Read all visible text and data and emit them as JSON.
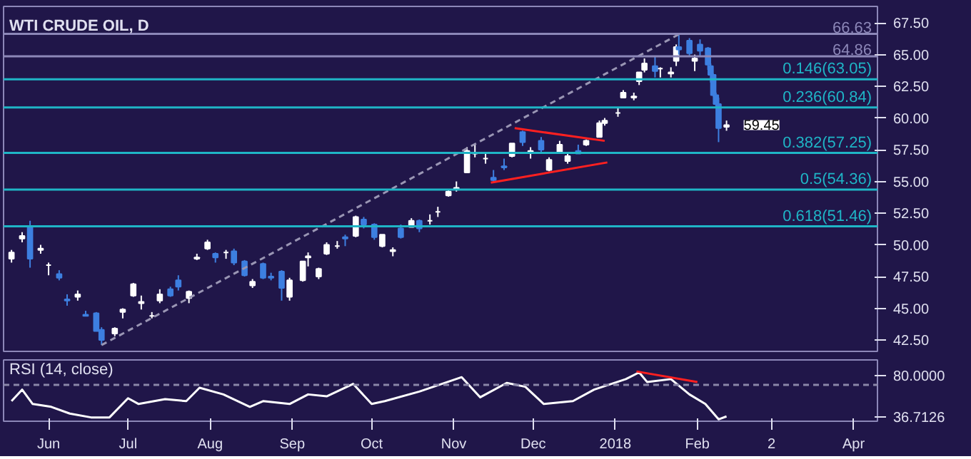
{
  "chart_data": [
    {
      "type": "candlestick",
      "title": "WTI CRUDE OIL, D",
      "x": [
        "2017-05-18",
        "2017-05-22",
        "2017-05-25",
        "2017-05-29",
        "2017-06-01",
        "2017-06-05",
        "2017-06-08",
        "2017-06-12",
        "2017-06-15",
        "2017-06-19",
        "2017-06-21",
        "2017-06-26",
        "2017-06-29",
        "2017-07-03",
        "2017-07-06",
        "2017-07-10",
        "2017-07-13",
        "2017-07-17",
        "2017-07-20",
        "2017-07-24",
        "2017-07-27",
        "2017-07-31",
        "2017-08-03",
        "2017-08-07",
        "2017-08-10",
        "2017-08-14",
        "2017-08-17",
        "2017-08-21",
        "2017-08-24",
        "2017-08-28",
        "2017-08-31",
        "2017-09-05",
        "2017-09-07",
        "2017-09-11",
        "2017-09-14",
        "2017-09-18",
        "2017-09-21",
        "2017-09-25",
        "2017-09-28",
        "2017-10-02",
        "2017-10-05",
        "2017-10-09",
        "2017-10-12",
        "2017-10-16",
        "2017-10-19",
        "2017-10-23",
        "2017-10-26",
        "2017-10-30",
        "2017-11-02",
        "2017-11-06",
        "2017-11-09",
        "2017-11-13",
        "2017-11-16",
        "2017-11-20",
        "2017-11-23",
        "2017-11-27",
        "2017-11-30",
        "2017-12-04",
        "2017-12-07",
        "2017-12-11",
        "2017-12-14",
        "2017-12-18",
        "2017-12-21",
        "2017-12-26",
        "2017-12-28",
        "2018-01-02",
        "2018-01-04",
        "2018-01-08",
        "2018-01-10",
        "2018-01-12",
        "2018-01-16",
        "2018-01-18",
        "2018-01-22",
        "2018-01-24",
        "2018-01-25",
        "2018-01-29",
        "2018-01-31",
        "2018-02-02",
        "2018-02-05",
        "2018-02-06",
        "2018-02-07",
        "2018-02-08",
        "2018-02-09",
        "2018-02-12"
      ],
      "ohlc": [
        [
          48.9,
          49.6,
          48.6,
          49.4
        ],
        [
          50.5,
          51.0,
          50.2,
          50.7
        ],
        [
          51.4,
          51.9,
          48.2,
          48.9
        ],
        [
          49.6,
          50.0,
          49.3,
          49.7
        ],
        [
          48.4,
          48.6,
          47.6,
          48.4
        ],
        [
          47.7,
          48.0,
          47.2,
          47.4
        ],
        [
          45.7,
          46.1,
          45.2,
          45.6
        ],
        [
          45.9,
          46.4,
          45.6,
          46.1
        ],
        [
          44.5,
          44.8,
          44.4,
          44.4
        ],
        [
          44.6,
          44.7,
          43.2,
          43.2
        ],
        [
          43.3,
          43.5,
          42.1,
          42.5
        ],
        [
          43.0,
          43.5,
          42.8,
          43.4
        ],
        [
          44.7,
          45.0,
          44.2,
          44.9
        ],
        [
          46.0,
          47.0,
          45.9,
          46.9
        ],
        [
          45.4,
          46.0,
          44.9,
          45.5
        ],
        [
          44.4,
          44.7,
          44.2,
          44.4
        ],
        [
          45.6,
          46.5,
          45.4,
          46.1
        ],
        [
          46.5,
          46.7,
          45.9,
          46.0
        ],
        [
          47.2,
          47.6,
          46.4,
          46.7
        ],
        [
          45.8,
          46.4,
          45.4,
          46.3
        ],
        [
          48.9,
          49.3,
          48.8,
          49.0
        ],
        [
          49.7,
          50.4,
          49.6,
          50.2
        ],
        [
          49.3,
          49.4,
          48.6,
          49.0
        ],
        [
          49.4,
          49.6,
          48.9,
          49.4
        ],
        [
          49.5,
          49.7,
          48.4,
          48.6
        ],
        [
          48.7,
          48.8,
          47.5,
          47.6
        ],
        [
          46.8,
          47.3,
          46.6,
          47.1
        ],
        [
          48.5,
          48.6,
          47.3,
          47.4
        ],
        [
          47.5,
          47.8,
          47.2,
          47.4
        ],
        [
          47.9,
          48.0,
          45.6,
          46.6
        ],
        [
          45.9,
          47.4,
          45.6,
          47.2
        ],
        [
          47.2,
          48.7,
          47.1,
          48.7
        ],
        [
          49.0,
          49.4,
          48.3,
          49.1
        ],
        [
          47.5,
          48.2,
          47.3,
          48.1
        ],
        [
          49.3,
          50.2,
          49.2,
          50.0
        ],
        [
          49.9,
          50.3,
          49.7,
          49.9
        ],
        [
          50.6,
          50.8,
          49.9,
          50.5
        ],
        [
          50.7,
          52.3,
          50.6,
          52.2
        ],
        [
          52.0,
          52.2,
          51.3,
          51.6
        ],
        [
          51.6,
          51.7,
          50.4,
          50.6
        ],
        [
          49.9,
          50.8,
          49.8,
          50.8
        ],
        [
          49.5,
          49.8,
          49.1,
          49.6
        ],
        [
          51.3,
          51.6,
          50.5,
          50.6
        ],
        [
          51.4,
          52.1,
          51.4,
          51.9
        ],
        [
          51.9,
          52.0,
          51.0,
          51.3
        ],
        [
          51.9,
          52.4,
          51.6,
          51.9
        ],
        [
          52.6,
          53.0,
          52.2,
          52.6
        ],
        [
          53.9,
          54.3,
          53.8,
          54.2
        ],
        [
          54.4,
          55.0,
          54.2,
          54.5
        ],
        [
          55.7,
          57.7,
          55.7,
          57.4
        ],
        [
          57.2,
          57.9,
          56.9,
          57.2
        ],
        [
          56.8,
          57.3,
          56.4,
          56.8
        ],
        [
          55.3,
          55.9,
          54.9,
          55.1
        ],
        [
          56.2,
          56.8,
          55.9,
          56.1
        ],
        [
          57.0,
          58.0,
          56.9,
          58.0
        ],
        [
          58.9,
          59.0,
          57.8,
          58.1
        ],
        [
          57.3,
          57.7,
          56.8,
          57.4
        ],
        [
          58.2,
          58.5,
          57.3,
          57.5
        ],
        [
          55.9,
          56.9,
          55.8,
          56.7
        ],
        [
          57.3,
          58.2,
          57.2,
          57.9
        ],
        [
          56.6,
          57.2,
          56.4,
          57.0
        ],
        [
          57.4,
          57.9,
          57.2,
          57.2
        ],
        [
          57.9,
          58.3,
          57.8,
          58.2
        ],
        [
          58.5,
          59.8,
          58.5,
          59.6
        ],
        [
          59.6,
          60.0,
          59.4,
          59.8
        ],
        [
          60.4,
          60.8,
          60.1,
          60.4
        ],
        [
          61.6,
          62.2,
          61.6,
          62.0
        ],
        [
          61.6,
          62.0,
          61.4,
          61.7
        ],
        [
          62.9,
          63.6,
          62.6,
          63.6
        ],
        [
          63.8,
          64.7,
          63.6,
          64.3
        ],
        [
          64.1,
          64.9,
          63.2,
          63.7
        ],
        [
          63.9,
          64.0,
          63.2,
          63.9
        ],
        [
          63.5,
          64.0,
          63.2,
          63.6
        ],
        [
          64.5,
          65.8,
          64.1,
          65.6
        ],
        [
          65.6,
          66.7,
          65.0,
          65.4
        ],
        [
          66.1,
          66.3,
          64.9,
          65.1
        ],
        [
          64.5,
          65.0,
          63.7,
          64.7
        ],
        [
          65.8,
          66.2,
          64.9,
          65.3
        ],
        [
          65.5,
          65.6,
          63.8,
          64.2
        ],
        [
          64.1,
          64.3,
          62.8,
          63.4
        ],
        [
          63.4,
          63.5,
          61.7,
          61.8
        ],
        [
          61.8,
          62.0,
          60.9,
          61.1
        ],
        [
          61.1,
          61.6,
          58.1,
          59.2
        ],
        [
          59.3,
          59.8,
          59.0,
          59.45
        ]
      ],
      "colors": [
        "#ffffff",
        "#ffffff",
        "#3d7fe0",
        "#ffffff",
        "#ffffff",
        "#3d7fe0",
        "#3d7fe0",
        "#ffffff",
        "#3d7fe0",
        "#3d7fe0",
        "#3d7fe0",
        "#ffffff",
        "#ffffff",
        "#ffffff",
        "#ffffff",
        "#ffffff",
        "#ffffff",
        "#3d7fe0",
        "#3d7fe0",
        "#ffffff",
        "#ffffff",
        "#ffffff",
        "#3d7fe0",
        "#ffffff",
        "#3d7fe0",
        "#3d7fe0",
        "#ffffff",
        "#3d7fe0",
        "#3d7fe0",
        "#3d7fe0",
        "#ffffff",
        "#ffffff",
        "#ffffff",
        "#ffffff",
        "#ffffff",
        "#ffffff",
        "#3d7fe0",
        "#ffffff",
        "#3d7fe0",
        "#3d7fe0",
        "#ffffff",
        "#ffffff",
        "#3d7fe0",
        "#ffffff",
        "#3d7fe0",
        "#ffffff",
        "#ffffff",
        "#ffffff",
        "#ffffff",
        "#ffffff",
        "#ffffff",
        "#ffffff",
        "#3d7fe0",
        "#3d7fe0",
        "#ffffff",
        "#3d7fe0",
        "#ffffff",
        "#3d7fe0",
        "#ffffff",
        "#ffffff",
        "#ffffff",
        "#3d7fe0",
        "#ffffff",
        "#ffffff",
        "#ffffff",
        "#ffffff",
        "#ffffff",
        "#ffffff",
        "#ffffff",
        "#ffffff",
        "#3d7fe0",
        "#ffffff",
        "#ffffff",
        "#ffffff",
        "#3d7fe0",
        "#3d7fe0",
        "#ffffff",
        "#3d7fe0",
        "#3d7fe0",
        "#3d7fe0",
        "#3d7fe0",
        "#3d7fe0",
        "#3d7fe0",
        "#ffffff"
      ],
      "series": [
        {
          "type": "line",
          "x": [
            "2017-06-21",
            "2018-01-25"
          ],
          "values": [
            42.1,
            66.6
          ],
          "color": "#9a96b4",
          "line_style": "dashed"
        },
        {
          "type": "line",
          "x": [
            "2017-11-24",
            "2017-12-28"
          ],
          "values": [
            59.2,
            58.2
          ],
          "color": "#ff2020",
          "line_style": "solid"
        },
        {
          "type": "line",
          "x": [
            "2017-11-15",
            "2017-12-29"
          ],
          "values": [
            54.9,
            56.5
          ],
          "color": "#ff2020",
          "line_style": "solid"
        }
      ],
      "ref_lines": [
        {
          "axis": "y",
          "value": 66.63,
          "label": "66.63",
          "color": "#8c87b8"
        },
        {
          "axis": "y",
          "value": 64.86,
          "label": "64.86",
          "color": "#8c87b8"
        },
        {
          "axis": "y",
          "value": 63.05,
          "label": "0.146(63.05)",
          "color": "#1fb5c6"
        },
        {
          "axis": "y",
          "value": 60.84,
          "label": "0.236(60.84)",
          "color": "#1fb5c6"
        },
        {
          "axis": "y",
          "value": 57.25,
          "label": "0.382(57.25)",
          "color": "#1fb5c6"
        },
        {
          "axis": "y",
          "value": 54.36,
          "label": "0.5(54.36)",
          "color": "#1fb5c6"
        },
        {
          "axis": "y",
          "value": 51.46,
          "label": "0.618(51.46)",
          "color": "#1fb5c6"
        }
      ],
      "annotations": [
        {
          "text": "59.45",
          "x": "2018-02-12",
          "y": 59.45
        }
      ],
      "xlim": [
        "2017-05-15",
        "2018-04-10"
      ],
      "ylim": [
        41.6,
        68.8
      ],
      "yticks": [
        {
          "value": 42.5,
          "label": "42.50"
        },
        {
          "value": 45,
          "label": "45.00"
        },
        {
          "value": 47.5,
          "label": "47.50"
        },
        {
          "value": 50,
          "label": "50.00"
        },
        {
          "value": 52.5,
          "label": "52.50"
        },
        {
          "value": 55,
          "label": "55.00"
        },
        {
          "value": 57.5,
          "label": "57.50"
        },
        {
          "value": 60,
          "label": "60.00"
        },
        {
          "value": 62.5,
          "label": "62.50"
        },
        {
          "value": 65,
          "label": "65.00"
        },
        {
          "value": 67.5,
          "label": "67.50"
        }
      ],
      "tick_labels": "y",
      "grid": false
    },
    {
      "type": "line",
      "title": "RSI (14, close)",
      "series": [
        {
          "x": [
            "2017-05-18",
            "2017-05-22",
            "2017-05-26",
            "2017-06-02",
            "2017-06-09",
            "2017-06-17",
            "2017-06-24",
            "2017-07-01",
            "2017-07-05",
            "2017-07-15",
            "2017-07-23",
            "2017-07-28",
            "2017-08-06",
            "2017-08-16",
            "2017-08-21",
            "2017-08-31",
            "2017-09-07",
            "2017-09-14",
            "2017-09-24",
            "2017-10-01",
            "2017-10-06",
            "2017-10-19",
            "2017-11-04",
            "2017-11-11",
            "2017-11-21",
            "2017-11-28",
            "2017-12-05",
            "2017-12-16",
            "2017-12-24",
            "2018-01-05",
            "2018-01-10",
            "2018-01-13",
            "2018-01-22",
            "2018-01-29",
            "2018-02-04",
            "2018-02-09",
            "2018-02-12"
          ],
          "values": [
            53,
            65,
            50,
            47,
            40,
            36,
            36,
            56,
            50,
            55,
            53,
            67,
            60,
            47,
            53,
            50,
            60,
            58,
            71,
            50,
            53,
            63,
            78,
            57,
            72,
            68,
            50,
            53,
            65,
            76,
            83,
            73,
            76,
            60,
            50,
            34,
            37
          ],
          "color": "#ffffff"
        },
        {
          "x": [
            "2018-01-09",
            "2018-02-01"
          ],
          "values": [
            84,
            73
          ],
          "color": "#ff2020"
        }
      ],
      "ref_lines": [
        {
          "axis": "y",
          "value": 70,
          "color": "#8a86a8",
          "line_style": "dashed"
        }
      ],
      "xlim": [
        "2017-05-15",
        "2018-04-10"
      ],
      "xticks": [
        {
          "value": "2017-06-01",
          "label": "Jun"
        },
        {
          "value": "2017-07-01",
          "label": "Jul"
        },
        {
          "value": "2017-08-01",
          "label": "Aug"
        },
        {
          "value": "2017-09-01",
          "label": "Sep"
        },
        {
          "value": "2017-10-01",
          "label": "Oct"
        },
        {
          "value": "2017-11-01",
          "label": "Nov"
        },
        {
          "value": "2017-12-01",
          "label": "Dec"
        },
        {
          "value": "2018-01-01",
          "label": "2018"
        },
        {
          "value": "2018-02-01",
          "label": "Feb"
        },
        {
          "value": "2018-03-01",
          "label": "2"
        },
        {
          "value": "2018-04-01",
          "label": "Apr"
        }
      ],
      "ylim": [
        32,
        96
      ],
      "yticks": [
        36.7126,
        {
          "value": 80,
          "label": "80.0000"
        }
      ],
      "grid": false
    }
  ]
}
